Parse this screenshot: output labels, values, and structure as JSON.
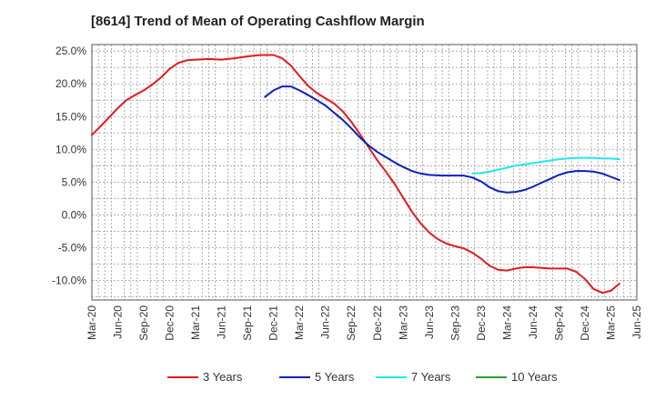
{
  "chart_data": {
    "type": "line",
    "title": "[8614]  Trend of Mean of Operating Cashflow Margin",
    "xlabel": "",
    "ylabel": "",
    "ylim": [
      -13,
      26
    ],
    "yticks": [
      25,
      20,
      15,
      10,
      5,
      0,
      -5,
      -10
    ],
    "ytick_labels": [
      "25.0%",
      "20.0%",
      "15.0%",
      "10.0%",
      "5.0%",
      "0.0%",
      "-5.0%",
      "-10.0%"
    ],
    "x_categories": [
      "Mar-20",
      "Jun-20",
      "Sep-20",
      "Dec-20",
      "Mar-21",
      "Jun-21",
      "Sep-21",
      "Dec-21",
      "Mar-22",
      "Jun-22",
      "Sep-22",
      "Dec-22",
      "Mar-23",
      "Jun-23",
      "Sep-23",
      "Dec-23",
      "Mar-24",
      "Jun-24",
      "Sep-24",
      "Dec-24",
      "Mar-25",
      "Jun-25"
    ],
    "grid": true,
    "legend_position": "bottom",
    "series": [
      {
        "name": "3 Years",
        "color": "#e31a1c",
        "points": [
          [
            0,
            12.2
          ],
          [
            0.33,
            13.5
          ],
          [
            0.67,
            14.9
          ],
          [
            1,
            16.3
          ],
          [
            1.33,
            17.5
          ],
          [
            1.67,
            18.3
          ],
          [
            2,
            19.0
          ],
          [
            2.33,
            19.9
          ],
          [
            2.67,
            21.0
          ],
          [
            3,
            22.3
          ],
          [
            3.33,
            23.2
          ],
          [
            3.67,
            23.6
          ],
          [
            4,
            23.7
          ],
          [
            4.5,
            23.8
          ],
          [
            5,
            23.7
          ],
          [
            5.5,
            23.9
          ],
          [
            6,
            24.2
          ],
          [
            6.5,
            24.4
          ],
          [
            7,
            24.4
          ],
          [
            7.33,
            23.9
          ],
          [
            7.67,
            22.8
          ],
          [
            8,
            21.2
          ],
          [
            8.33,
            19.7
          ],
          [
            8.67,
            18.6
          ],
          [
            9,
            17.8
          ],
          [
            9.33,
            17.0
          ],
          [
            9.67,
            15.8
          ],
          [
            10,
            14.2
          ],
          [
            10.33,
            12.3
          ],
          [
            10.67,
            10.3
          ],
          [
            11,
            8.3
          ],
          [
            11.33,
            6.6
          ],
          [
            11.67,
            4.7
          ],
          [
            12,
            2.6
          ],
          [
            12.33,
            0.5
          ],
          [
            12.67,
            -1.3
          ],
          [
            13,
            -2.7
          ],
          [
            13.33,
            -3.7
          ],
          [
            13.67,
            -4.4
          ],
          [
            14,
            -4.8
          ],
          [
            14.33,
            -5.1
          ],
          [
            14.67,
            -5.8
          ],
          [
            15,
            -6.7
          ],
          [
            15.33,
            -7.8
          ],
          [
            15.67,
            -8.4
          ],
          [
            16,
            -8.5
          ],
          [
            16.33,
            -8.2
          ],
          [
            16.67,
            -8.0
          ],
          [
            17,
            -8.0
          ],
          [
            17.33,
            -8.1
          ],
          [
            17.67,
            -8.2
          ],
          [
            18,
            -8.2
          ],
          [
            18.33,
            -8.2
          ],
          [
            18.67,
            -8.7
          ],
          [
            19,
            -9.8
          ],
          [
            19.33,
            -11.3
          ],
          [
            19.67,
            -11.9
          ],
          [
            20,
            -11.6
          ],
          [
            20.33,
            -10.5
          ]
        ]
      },
      {
        "name": "5 Years",
        "color": "#0a1fbf",
        "points": [
          [
            6.67,
            18.0
          ],
          [
            7,
            19.0
          ],
          [
            7.33,
            19.6
          ],
          [
            7.67,
            19.6
          ],
          [
            8,
            19.0
          ],
          [
            8.33,
            18.3
          ],
          [
            8.67,
            17.5
          ],
          [
            9,
            16.7
          ],
          [
            9.33,
            15.6
          ],
          [
            9.67,
            14.5
          ],
          [
            10,
            13.2
          ],
          [
            10.33,
            11.8
          ],
          [
            10.67,
            10.6
          ],
          [
            11,
            9.6
          ],
          [
            11.33,
            8.8
          ],
          [
            11.67,
            8.0
          ],
          [
            12,
            7.3
          ],
          [
            12.33,
            6.7
          ],
          [
            12.67,
            6.3
          ],
          [
            13,
            6.1
          ],
          [
            13.5,
            6.0
          ],
          [
            14,
            6.0
          ],
          [
            14.33,
            6.0
          ],
          [
            14.67,
            5.7
          ],
          [
            15,
            5.1
          ],
          [
            15.33,
            4.2
          ],
          [
            15.67,
            3.6
          ],
          [
            16,
            3.4
          ],
          [
            16.33,
            3.5
          ],
          [
            16.67,
            3.8
          ],
          [
            17,
            4.3
          ],
          [
            17.33,
            4.9
          ],
          [
            17.67,
            5.5
          ],
          [
            18,
            6.1
          ],
          [
            18.33,
            6.5
          ],
          [
            18.67,
            6.7
          ],
          [
            19,
            6.7
          ],
          [
            19.33,
            6.6
          ],
          [
            19.67,
            6.3
          ],
          [
            20,
            5.8
          ],
          [
            20.33,
            5.3
          ]
        ]
      },
      {
        "name": "7 Years",
        "color": "#1ee8f0",
        "points": [
          [
            14.67,
            6.3
          ],
          [
            15,
            6.4
          ],
          [
            15.33,
            6.6
          ],
          [
            15.67,
            6.9
          ],
          [
            16,
            7.2
          ],
          [
            16.33,
            7.5
          ],
          [
            16.67,
            7.7
          ],
          [
            17,
            7.9
          ],
          [
            17.33,
            8.1
          ],
          [
            17.67,
            8.3
          ],
          [
            18,
            8.5
          ],
          [
            18.33,
            8.6
          ],
          [
            18.67,
            8.7
          ],
          [
            19,
            8.7
          ],
          [
            19.33,
            8.7
          ],
          [
            19.67,
            8.6
          ],
          [
            20,
            8.6
          ],
          [
            20.33,
            8.5
          ]
        ]
      },
      {
        "name": "10 Years",
        "color": "#2ca02c",
        "points": []
      }
    ]
  }
}
